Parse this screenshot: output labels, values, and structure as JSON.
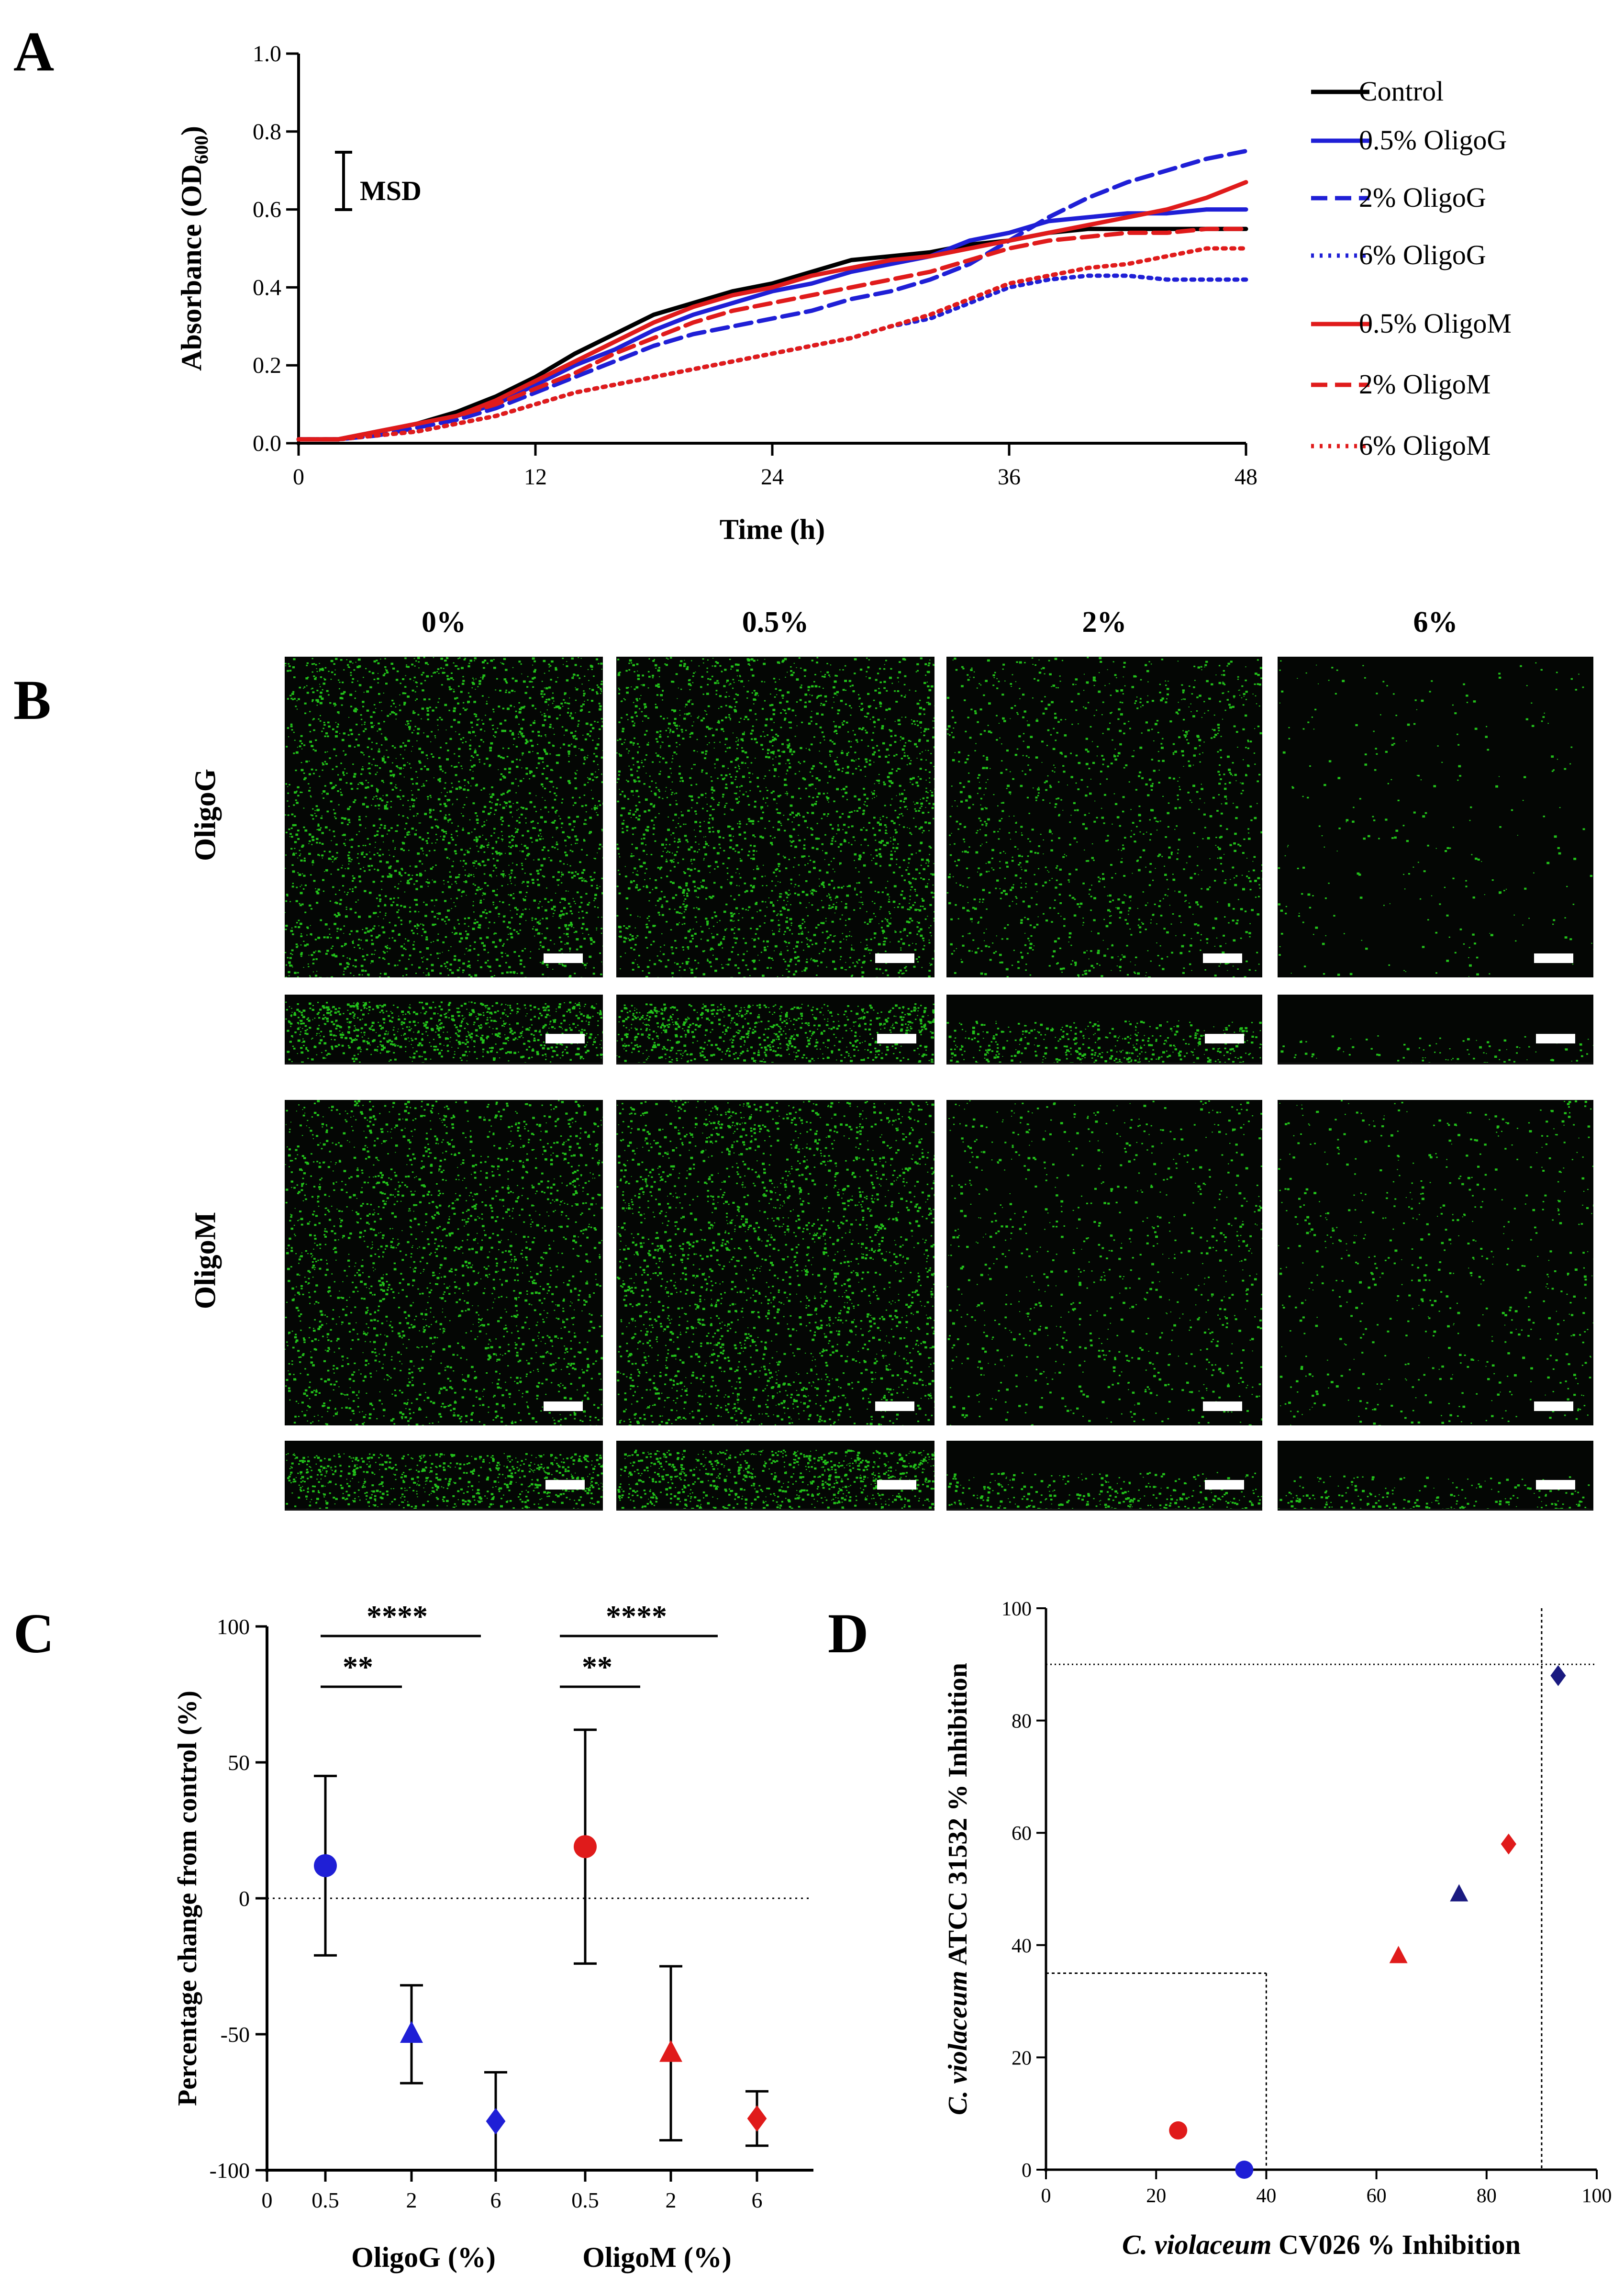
{
  "panels": {
    "A": "A",
    "B": "B",
    "C": "C",
    "D": "D"
  },
  "panel_a": {
    "msd_label": "MSD",
    "legend": [
      "Control",
      "0.5% OligoG",
      "2% OligoG",
      "6% OligoG",
      "0.5% OligoM",
      "2% OligoM",
      "6% OligoM"
    ]
  },
  "panel_b": {
    "col_labels": [
      "0%",
      "0.5%",
      "2%",
      "6%"
    ],
    "row_labels": [
      "OligoG",
      "OligoM"
    ],
    "density": {
      "OligoG": [
        1.0,
        0.95,
        0.5,
        0.1
      ],
      "OligoM": [
        0.85,
        0.95,
        0.35,
        0.25
      ]
    },
    "colors": {
      "cell": "#22c11a",
      "background": "#040604"
    }
  },
  "panel_c": {
    "groups": [
      "OligoG (%)",
      "OligoM (%)"
    ],
    "sig": [
      {
        "label": "****",
        "group": "OligoG"
      },
      {
        "label": "**",
        "group": "OligoG"
      },
      {
        "label": "****",
        "group": "OligoM"
      },
      {
        "label": "**",
        "group": "OligoM"
      }
    ]
  },
  "chart_data": [
    {
      "type": "line",
      "title": "",
      "xlabel": "Time (h)",
      "ylabel": "Absorbance (OD600)",
      "xlim": [
        0,
        48
      ],
      "ylim": [
        0,
        1.0
      ],
      "xticks": [
        0,
        12,
        24,
        36,
        48
      ],
      "yticks": [
        "0.0",
        "0.2",
        "0.4",
        "0.6",
        "0.8",
        "1.0"
      ],
      "legend_position": "right",
      "x": [
        0,
        2,
        4,
        6,
        8,
        10,
        12,
        14,
        16,
        18,
        20,
        22,
        24,
        26,
        28,
        30,
        32,
        34,
        36,
        38,
        40,
        42,
        44,
        46,
        48
      ],
      "series": [
        {
          "name": "Control",
          "color": "#000000",
          "style": "solid",
          "values": [
            0.01,
            0.01,
            0.03,
            0.05,
            0.08,
            0.12,
            0.17,
            0.23,
            0.28,
            0.33,
            0.36,
            0.39,
            0.41,
            0.44,
            0.47,
            0.48,
            0.49,
            0.51,
            0.52,
            0.54,
            0.55,
            0.55,
            0.55,
            0.55,
            0.55
          ]
        },
        {
          "name": "0.5% OligoG",
          "color": "#1f1fd6",
          "style": "solid",
          "values": [
            0.01,
            0.01,
            0.03,
            0.05,
            0.07,
            0.1,
            0.15,
            0.2,
            0.24,
            0.29,
            0.33,
            0.36,
            0.39,
            0.41,
            0.44,
            0.46,
            0.48,
            0.52,
            0.54,
            0.57,
            0.58,
            0.59,
            0.59,
            0.6,
            0.6
          ]
        },
        {
          "name": "2% OligoG",
          "color": "#1f1fd6",
          "style": "dash",
          "values": [
            0.01,
            0.01,
            0.02,
            0.04,
            0.06,
            0.09,
            0.13,
            0.17,
            0.21,
            0.25,
            0.28,
            0.3,
            0.32,
            0.34,
            0.37,
            0.39,
            0.42,
            0.46,
            0.52,
            0.58,
            0.63,
            0.67,
            0.7,
            0.73,
            0.75
          ]
        },
        {
          "name": "6% OligoG",
          "color": "#1f1fd6",
          "style": "dot",
          "values": [
            0.01,
            0.01,
            0.02,
            0.03,
            0.05,
            0.07,
            0.1,
            0.13,
            0.15,
            0.17,
            0.19,
            0.21,
            0.23,
            0.25,
            0.27,
            0.3,
            0.32,
            0.36,
            0.4,
            0.42,
            0.43,
            0.43,
            0.42,
            0.42,
            0.42
          ]
        },
        {
          "name": "0.5% OligoM",
          "color": "#e01b1b",
          "style": "solid",
          "values": [
            0.01,
            0.01,
            0.03,
            0.05,
            0.07,
            0.11,
            0.16,
            0.21,
            0.26,
            0.31,
            0.35,
            0.38,
            0.4,
            0.43,
            0.45,
            0.47,
            0.48,
            0.5,
            0.52,
            0.54,
            0.56,
            0.58,
            0.6,
            0.63,
            0.67
          ]
        },
        {
          "name": "2% OligoM",
          "color": "#e01b1b",
          "style": "dash",
          "values": [
            0.01,
            0.01,
            0.03,
            0.05,
            0.07,
            0.1,
            0.14,
            0.18,
            0.23,
            0.27,
            0.31,
            0.34,
            0.36,
            0.38,
            0.4,
            0.42,
            0.44,
            0.47,
            0.5,
            0.52,
            0.53,
            0.54,
            0.54,
            0.55,
            0.55
          ]
        },
        {
          "name": "6% OligoM",
          "color": "#e01b1b",
          "style": "dot",
          "values": [
            0.01,
            0.01,
            0.02,
            0.03,
            0.05,
            0.07,
            0.1,
            0.13,
            0.15,
            0.17,
            0.19,
            0.21,
            0.23,
            0.25,
            0.27,
            0.3,
            0.33,
            0.37,
            0.41,
            0.43,
            0.45,
            0.46,
            0.48,
            0.5,
            0.5
          ]
        }
      ]
    },
    {
      "type": "scatter",
      "title": "",
      "xlabel": "",
      "ylabel": "Percentage change from control (%)",
      "ylim": [
        -100,
        100
      ],
      "yticks": [
        "100",
        "50",
        "0",
        "-50",
        "-100"
      ],
      "x_ticks": [
        "0",
        "0.5",
        "2",
        "6",
        "0.5",
        "2",
        "6"
      ],
      "points": [
        {
          "group": "OligoG",
          "category": "0.5",
          "value": 12,
          "err": 33,
          "marker": "circle",
          "color": "#1f1fd6"
        },
        {
          "group": "OligoG",
          "category": "2",
          "value": -50,
          "err": 18,
          "marker": "triangle",
          "color": "#1f1fd6"
        },
        {
          "group": "OligoG",
          "category": "6",
          "value": -82,
          "err": 18,
          "marker": "diamond",
          "color": "#1f1fd6"
        },
        {
          "group": "OligoM",
          "category": "0.5",
          "value": 19,
          "err": 43,
          "marker": "circle",
          "color": "#e01b1b"
        },
        {
          "group": "OligoM",
          "category": "2",
          "value": -57,
          "err": 32,
          "marker": "triangle",
          "color": "#e01b1b"
        },
        {
          "group": "OligoM",
          "category": "6",
          "value": -81,
          "err": 10,
          "marker": "diamond",
          "color": "#e01b1b"
        }
      ],
      "reference_line": 0
    },
    {
      "type": "scatter",
      "title": "",
      "xlabel_italic": "C. violaceum",
      "xlabel_rest": " CV026 % Inhibition",
      "ylabel_italic": "C. violaceum",
      "ylabel_rest": " ATCC 31532 % Inhibition",
      "xlim": [
        0,
        100
      ],
      "ylim": [
        0,
        100
      ],
      "xticks": [
        0,
        20,
        40,
        60,
        80,
        100
      ],
      "yticks": [
        0,
        20,
        40,
        60,
        80,
        100
      ],
      "points": [
        {
          "x": 24,
          "y": 7,
          "marker": "circle",
          "color": "#e01b1b"
        },
        {
          "x": 36,
          "y": 0,
          "marker": "circle",
          "color": "#1f1fd6"
        },
        {
          "x": 64,
          "y": 38,
          "marker": "triangle",
          "color": "#e01b1b"
        },
        {
          "x": 75,
          "y": 49,
          "marker": "triangle",
          "color": "#1a1a80"
        },
        {
          "x": 84,
          "y": 58,
          "marker": "diamond",
          "color": "#e01b1b"
        },
        {
          "x": 93,
          "y": 88,
          "marker": "diamond",
          "color": "#1a1a80"
        }
      ],
      "reference_lines": {
        "horizontal": [
          90,
          35
        ],
        "vertical": [
          90,
          40
        ]
      }
    }
  ]
}
